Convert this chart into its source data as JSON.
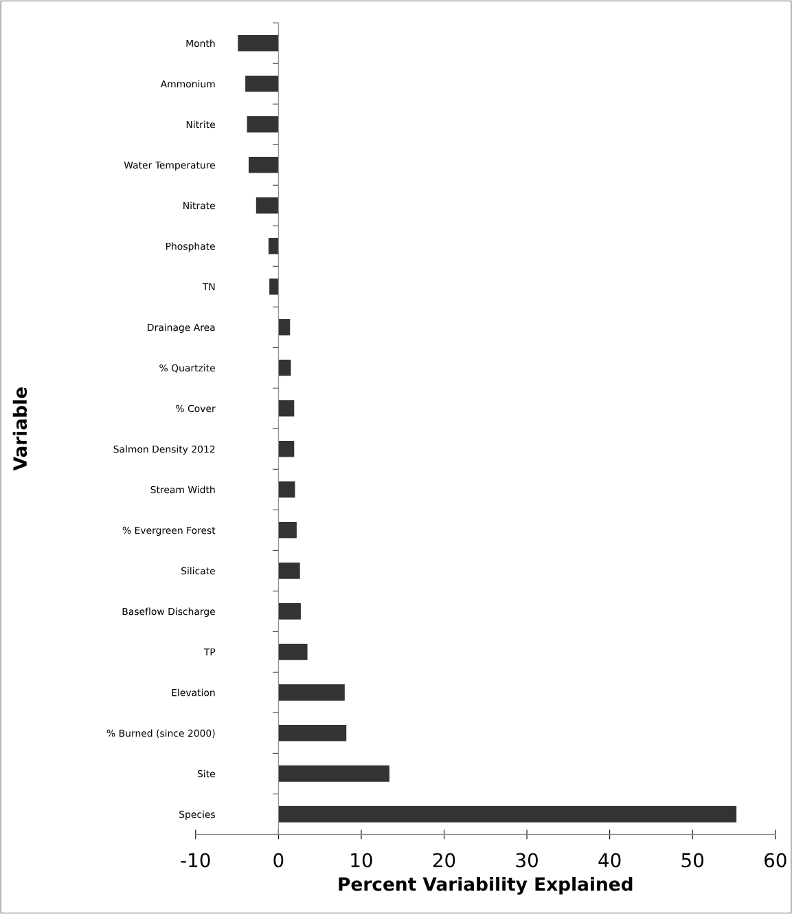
{
  "chart_data": {
    "type": "bar",
    "orientation": "horizontal",
    "xlabel": "Percent Variability Explained",
    "ylabel": "Variable",
    "categories": [
      "Month",
      "Ammonium",
      "Nitrite",
      "Water Temperature",
      "Nitrate",
      "Phosphate",
      "TN",
      "Drainage Area",
      "% Quartzite",
      "% Cover",
      "Salmon Density 2012",
      "Stream Width",
      "% Evergreen Forest",
      "Silicate",
      "Baseflow Discharge",
      "TP",
      "Elevation",
      "% Burned (since 2000)",
      "Site",
      "Species"
    ],
    "values": [
      -4.9,
      -4.0,
      -3.8,
      -3.6,
      -2.7,
      -1.2,
      -1.1,
      1.4,
      1.5,
      1.9,
      1.9,
      2.0,
      2.2,
      2.6,
      2.7,
      3.5,
      8.0,
      8.2,
      13.4,
      55.3
    ],
    "color": "#333333",
    "xlim": [
      -10,
      60
    ],
    "xticks": [
      -10,
      0,
      10,
      20,
      30,
      40,
      50,
      60
    ]
  }
}
